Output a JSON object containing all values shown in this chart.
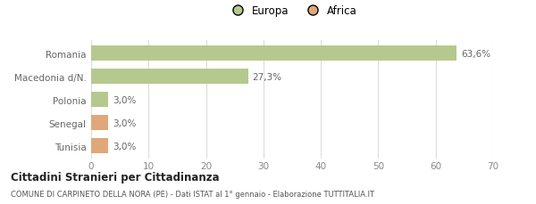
{
  "categories": [
    "Tunisia",
    "Senegal",
    "Polonia",
    "Macedonia d/N.",
    "Romania"
  ],
  "values": [
    3.0,
    3.0,
    3.0,
    27.3,
    63.6
  ],
  "colors": [
    "#e0a87a",
    "#e0a87a",
    "#b5c98e",
    "#b5c98e",
    "#b5c98e"
  ],
  "labels": [
    "3,0%",
    "3,0%",
    "3,0%",
    "27,3%",
    "63,6%"
  ],
  "legend": [
    {
      "label": "Europa",
      "color": "#b5c98e"
    },
    {
      "label": "Africa",
      "color": "#e0a87a"
    }
  ],
  "xlim": [
    0,
    70
  ],
  "xticks": [
    0,
    10,
    20,
    30,
    40,
    50,
    60,
    70
  ],
  "title": "Cittadini Stranieri per Cittadinanza",
  "subtitle": "COMUNE DI CARPINETO DELLA NORA (PE) - Dati ISTAT al 1° gennaio - Elaborazione TUTTITALIA.IT",
  "background_color": "#ffffff",
  "bar_height": 0.65,
  "grid_color": "#dddddd",
  "label_fontsize": 7.5,
  "ytick_fontsize": 7.5,
  "xtick_fontsize": 7.5
}
